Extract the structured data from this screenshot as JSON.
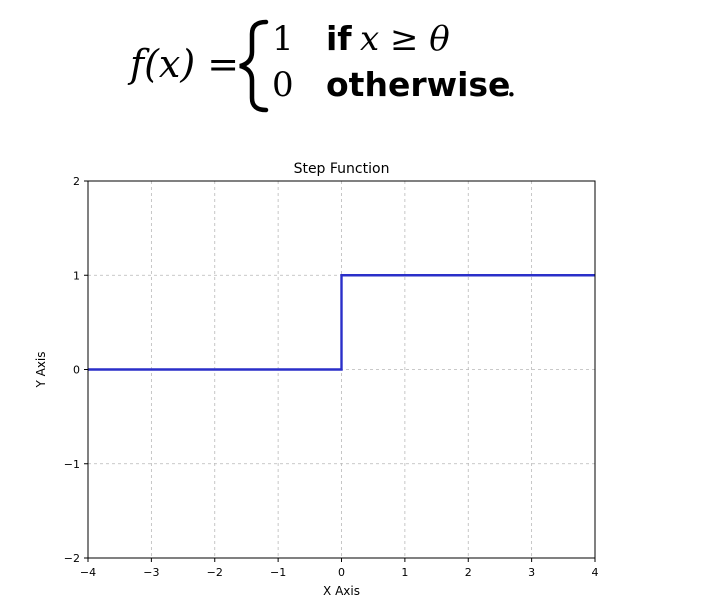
{
  "formula": {
    "lhs": "f(x) =",
    "case1_value": "1",
    "case1_keyword": "if",
    "case1_condition": "x ≥ θ",
    "case2_value": "0",
    "case2_keyword": "otherwise",
    "case2_end": "."
  },
  "chart_data": {
    "type": "line",
    "title": "Step Function",
    "xlabel": "X Axis",
    "ylabel": "Y Axis",
    "xlim": [
      -4,
      4
    ],
    "ylim": [
      -2,
      2
    ],
    "xticks": [
      -4,
      -3,
      -2,
      -1,
      0,
      1,
      2,
      3,
      4
    ],
    "xtick_labels": [
      "−4",
      "−3",
      "−2",
      "−1",
      "0",
      "1",
      "2",
      "3",
      "4"
    ],
    "yticks": [
      -2,
      -1,
      0,
      1,
      2
    ],
    "ytick_labels": [
      "−2",
      "−1",
      "0",
      "1",
      "2"
    ],
    "grid": true,
    "series": [
      {
        "color": "#2a2fc9",
        "x": [
          -4,
          0,
          0,
          4
        ],
        "y": [
          0,
          0,
          1,
          1
        ]
      }
    ]
  }
}
